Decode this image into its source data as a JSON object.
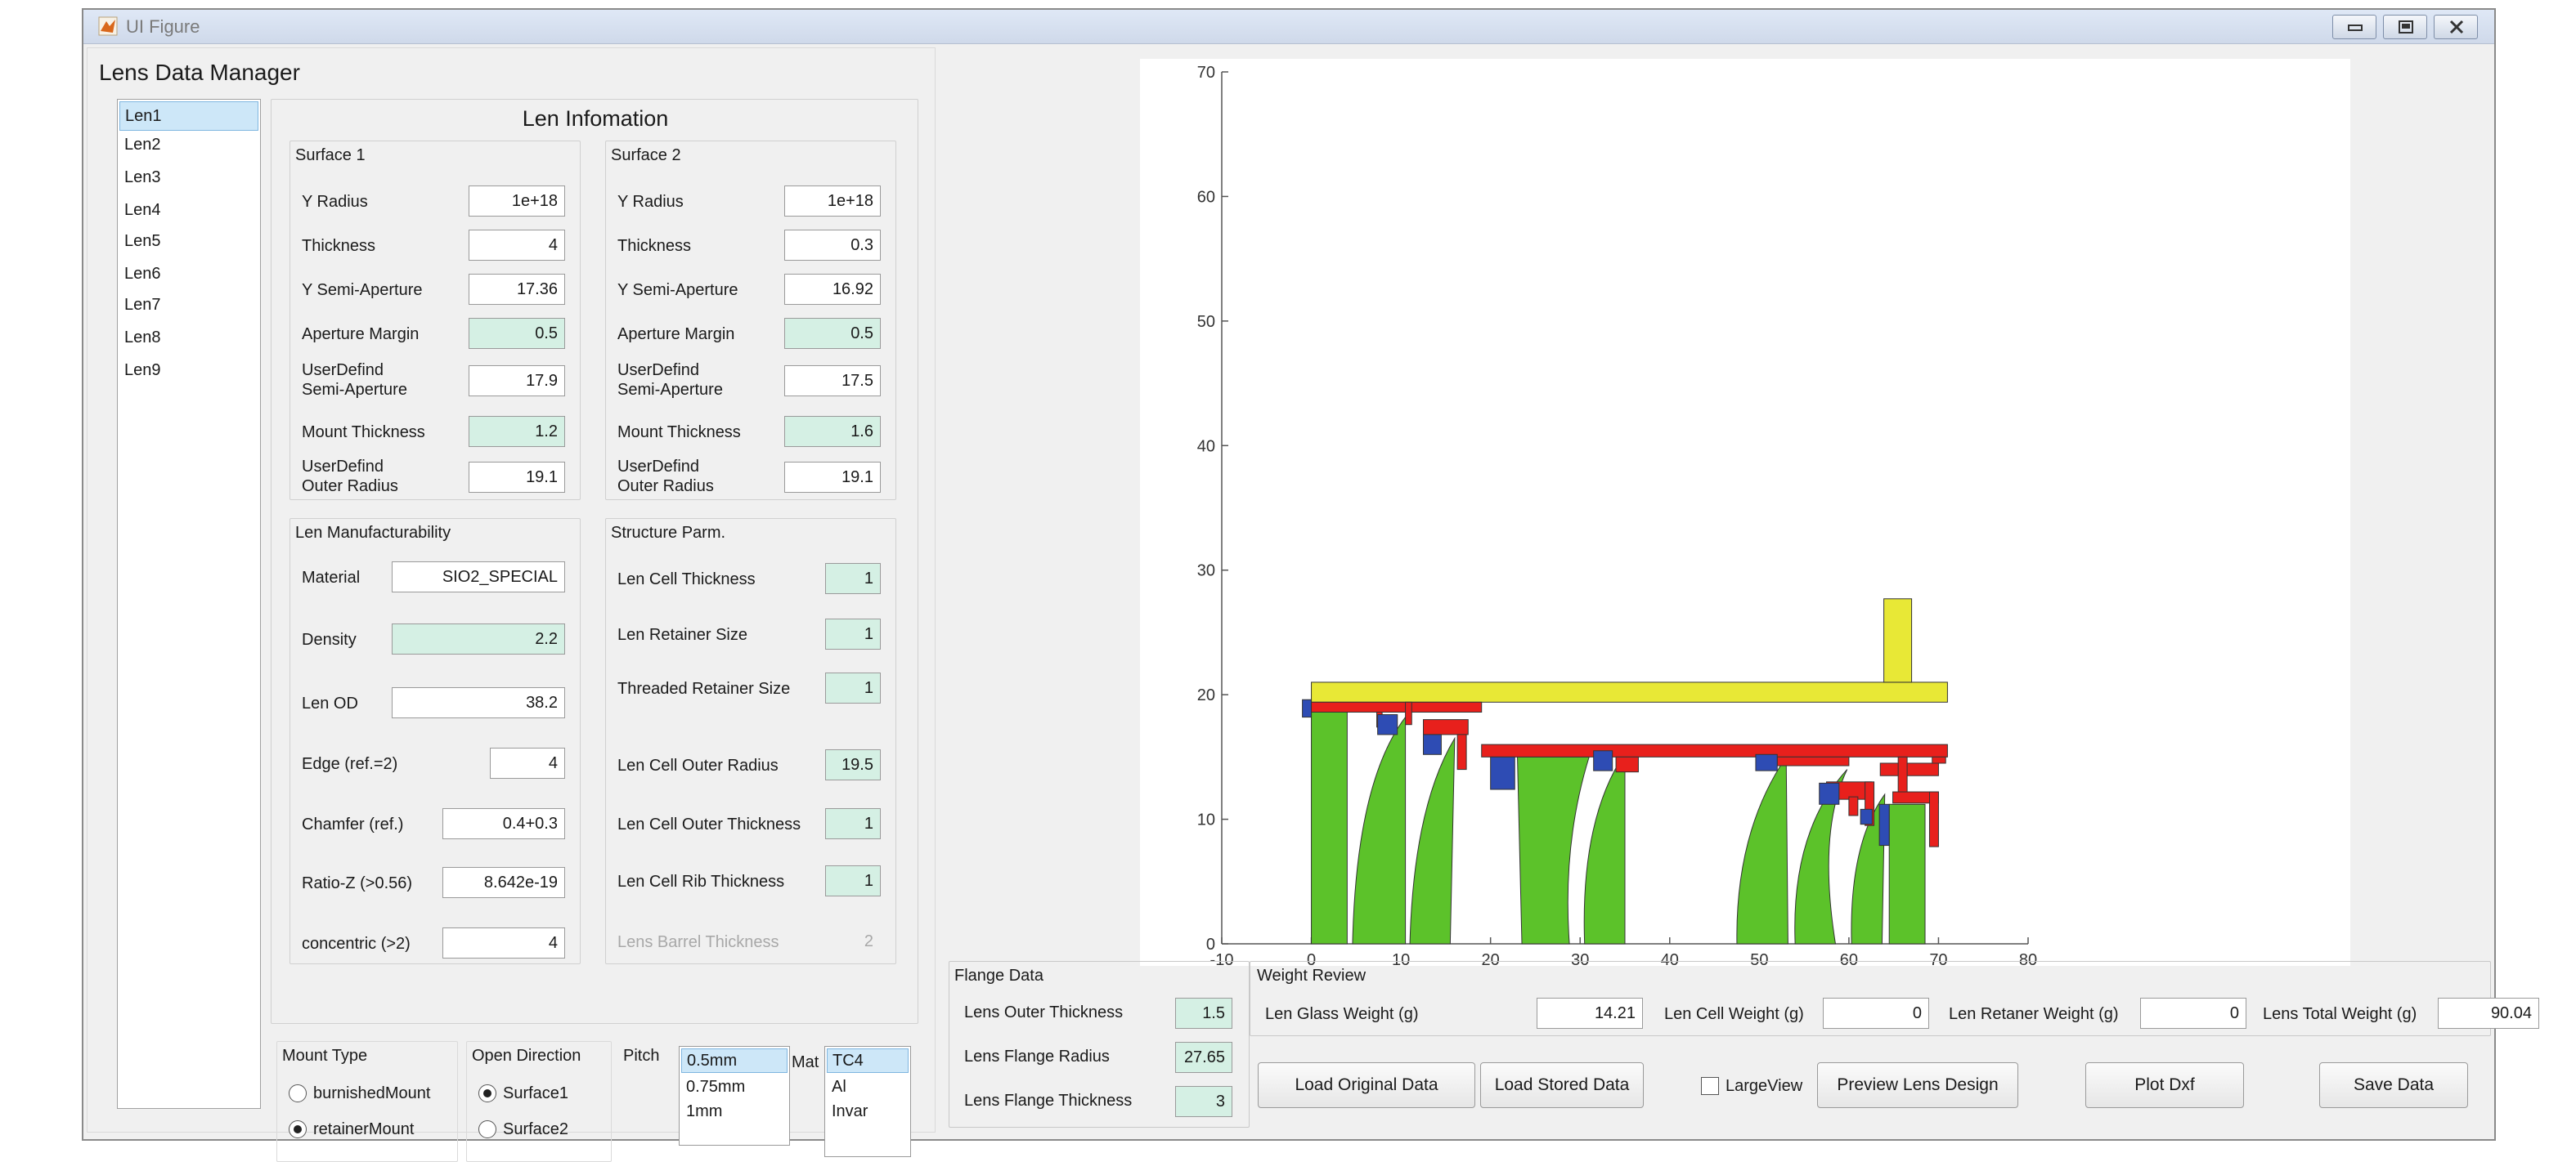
{
  "window": {
    "title": "UI Figure",
    "pane_title": "Lens Data Manager",
    "controls": [
      "minimize-icon",
      "maximize-icon",
      "close-icon"
    ]
  },
  "lens_list": [
    "Len1",
    "Len2",
    "Len3",
    "Len4",
    "Len5",
    "Len6",
    "Len7",
    "Len8",
    "Len9"
  ],
  "len_info": {
    "title": "Len Infomation",
    "surface1": {
      "title": "Surface 1",
      "y_radius_label": "Y Radius",
      "y_radius": "1e+18",
      "thickness_label": "Thickness",
      "thickness": "4",
      "semi_aperture_label": "Y Semi-Aperture",
      "semi_aperture": "17.36",
      "aperture_margin_label": "Aperture Margin",
      "aperture_margin": "0.5",
      "user_semi_label1": "UserDefind",
      "user_semi_label2": "Semi-Aperture",
      "user_semi": "17.9",
      "mount_thickness_label": "Mount Thickness",
      "mount_thickness": "1.2",
      "user_outer_label1": "UserDefind",
      "user_outer_label2": "Outer Radius",
      "user_outer": "19.1"
    },
    "surface2": {
      "title": "Surface 2",
      "y_radius_label": "Y Radius",
      "y_radius": "1e+18",
      "thickness_label": "Thickness",
      "thickness": "0.3",
      "semi_aperture_label": "Y Semi-Aperture",
      "semi_aperture": "16.92",
      "aperture_margin_label": "Aperture Margin",
      "aperture_margin": "0.5",
      "user_semi_label1": "UserDefind",
      "user_semi_label2": "Semi-Aperture",
      "user_semi": "17.5",
      "mount_thickness_label": "Mount Thickness",
      "mount_thickness": "1.6",
      "user_outer_label1": "UserDefind",
      "user_outer_label2": "Outer Radius",
      "user_outer": "19.1"
    },
    "manufacturability": {
      "title": "Len Manufacturability",
      "material_label": "Material",
      "material": "SIO2_SPECIAL",
      "density_label": "Density",
      "density": "2.2",
      "od_label": "Len OD",
      "od": "38.2",
      "edge_label": "Edge (ref.=2)",
      "edge": "4",
      "chamfer_label": "Chamfer (ref.)",
      "chamfer": "0.4+0.3",
      "ratio_label": "Ratio-Z (>0.56)",
      "ratio": "8.642e-19",
      "concentric_label": "concentric (>2)",
      "concentric": "4"
    },
    "structure": {
      "title": "Structure Parm.",
      "cell_thickness_label": "Len Cell Thickness",
      "cell_thickness": "1",
      "retainer_size_label": "Len Retainer Size",
      "retainer_size": "1",
      "threaded_label": "Threaded Retainer Size",
      "threaded": "1",
      "cell_outer_radius_label": "Len Cell Outer Radius",
      "cell_outer_radius": "19.5",
      "cell_outer_thickness_label": "Len Cell Outer Thickness",
      "cell_outer_thickness": "1",
      "rib_label": "Len Cell Rib Thickness",
      "rib": "1",
      "barrel_label": "Lens Barrel Thickness",
      "barrel": "2"
    }
  },
  "mount_type": {
    "title": "Mount Type",
    "options": [
      "burnishedMount",
      "retainerMount"
    ],
    "selected": "retainerMount"
  },
  "open_direction": {
    "title": "Open Direction",
    "options": [
      "Surface1",
      "Surface2"
    ],
    "selected": "Surface1"
  },
  "pitch": {
    "label": "Pitch",
    "options": [
      "0.5mm",
      "0.75mm",
      "1mm"
    ],
    "selected": "0.5mm"
  },
  "mat": {
    "label": "Mat",
    "options": [
      "TC4",
      "Al",
      "Invar"
    ],
    "selected": "TC4"
  },
  "flange": {
    "title": "Flange Data",
    "outer_thickness_label": "Lens Outer Thickness",
    "outer_thickness": "1.5",
    "radius_label": "Lens Flange Radius",
    "radius": "27.65",
    "thickness_label": "Lens Flange Thickness",
    "thickness": "3"
  },
  "weight": {
    "title": "Weight Review",
    "glass_label": "Len Glass Weight (g)",
    "glass": "14.21",
    "cell_label": "Len Cell Weight (g)",
    "cell": "0",
    "retainer_label": "Len Retaner Weight (g)",
    "retainer": "0",
    "total_label": "Lens Total Weight (g)",
    "total": "90.04"
  },
  "buttons": {
    "load_original": "Load Original Data",
    "load_stored": "Load Stored Data",
    "large_view": "LargeView",
    "preview": "Preview Lens Design",
    "plot_dxf": "Plot Dxf",
    "save": "Save Data"
  },
  "large_view_checked": false,
  "plot": {
    "xlim": [
      -10,
      80
    ],
    "ylim": [
      0,
      70
    ],
    "xticks": [
      "-10",
      "0",
      "10",
      "20",
      "30",
      "40",
      "50",
      "60",
      "70",
      "80"
    ],
    "yticks": [
      "0",
      "10",
      "20",
      "30",
      "40",
      "50",
      "60",
      "70"
    ],
    "colors": {
      "lens": "#5cc22a",
      "cell": "#e8201c",
      "retainer": "#2e4cb4",
      "flange": "#e8e836"
    }
  }
}
